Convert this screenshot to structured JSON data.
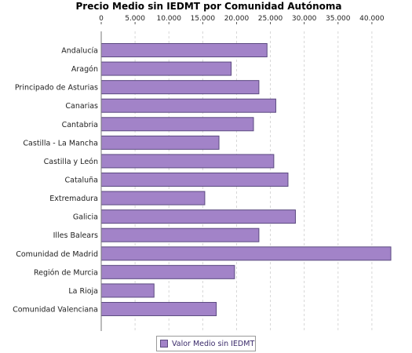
{
  "chart_data": {
    "type": "bar",
    "orientation": "horizontal",
    "title": "Precio Medio sin IEDMT por Comunidad Autónoma",
    "xlim": [
      0,
      45000
    ],
    "tick_values": [
      0,
      5000,
      10000,
      15000,
      20000,
      25000,
      30000,
      35000,
      40000
    ],
    "tick_labels": [
      "0",
      "5.000",
      "10.000",
      "15.000",
      "20.000",
      "25.000",
      "30.000",
      "35.000",
      "40.000"
    ],
    "categories": [
      "Andalucía",
      "Aragón",
      "Principado de Asturias",
      "Canarias",
      "Cantabria",
      "Castilla - La Mancha",
      "Castilla y León",
      "Cataluña",
      "Extremadura",
      "Galicia",
      "Illes Balears",
      "Comunidad de Madrid",
      "Región de Murcia",
      "La Rioja",
      "Comunidad Valenciana"
    ],
    "series": [
      {
        "name": "Valor Medio sin IEDMT",
        "values": [
          24500,
          19200,
          23300,
          25800,
          22500,
          17400,
          25500,
          27600,
          15300,
          28700,
          23300,
          42800,
          19700,
          7800,
          17000
        ]
      }
    ],
    "grid": true,
    "legend": "bottom",
    "bar_color": "#a283c8",
    "bar_border_color": "#5b4a80"
  }
}
